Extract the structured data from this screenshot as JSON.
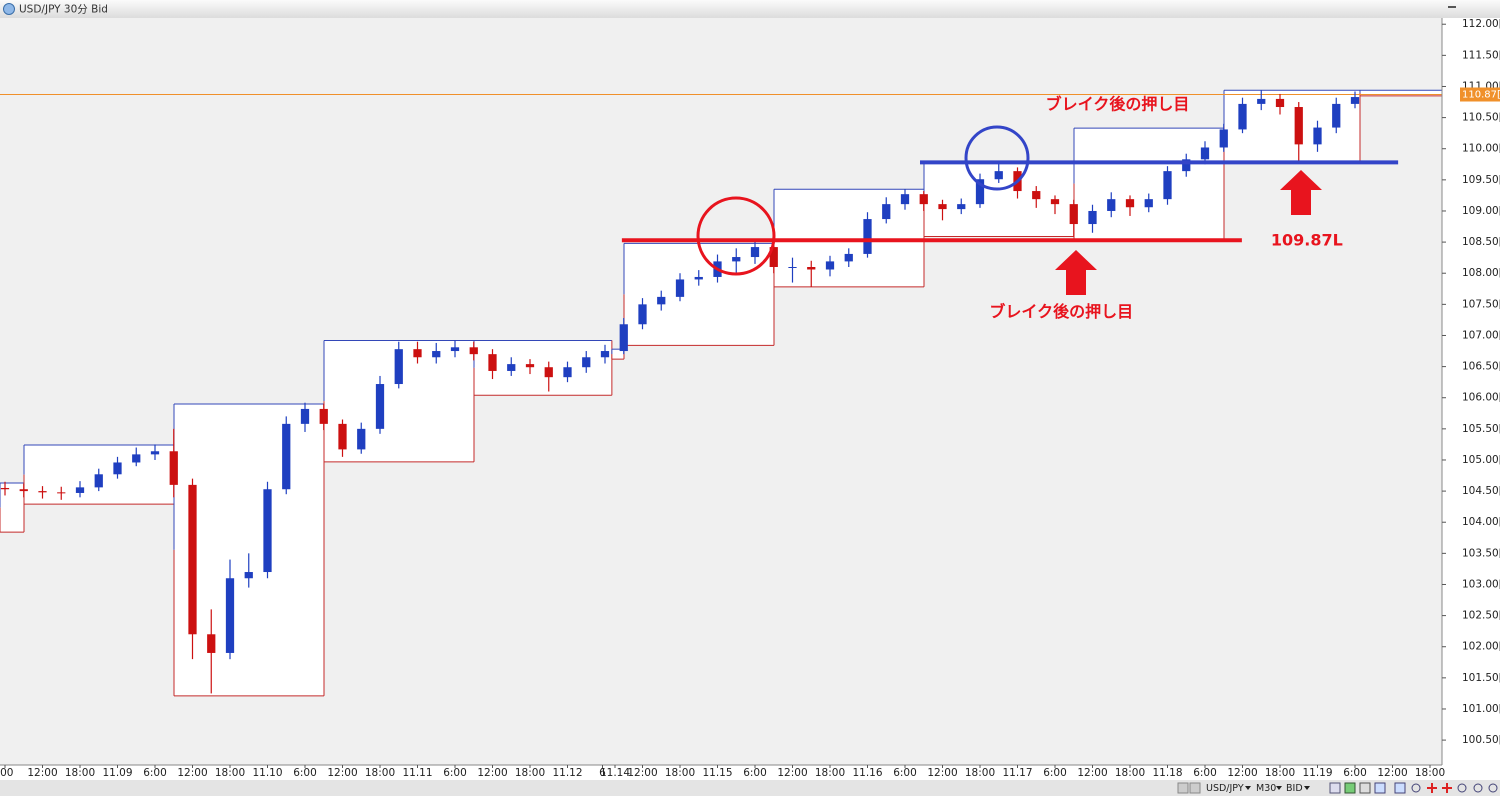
{
  "window_title": "USD/JPY 30分 Bid",
  "toolbar": [
    "USD/JPY",
    "M30",
    "BID"
  ],
  "chart_data": {
    "type": "candlestick",
    "xlim": [
      -0.8,
      229.92
    ],
    "ylim": [
      100.1,
      112.1
    ],
    "yticks": [
      {
        "value": 112.0,
        "label": "112.00[0"
      },
      {
        "value": 111.5,
        "label": "111.50[0"
      },
      {
        "value": 111.0,
        "label": "111.00[0"
      },
      {
        "value": 110.5,
        "label": "110.50[0"
      },
      {
        "value": 110.0,
        "label": "110.00[0"
      },
      {
        "value": 109.5,
        "label": "109.50[0"
      },
      {
        "value": 109.0,
        "label": "109.00[0"
      },
      {
        "value": 108.5,
        "label": "108.50[0"
      },
      {
        "value": 108.0,
        "label": "108.00[0"
      },
      {
        "value": 107.5,
        "label": "107.50[0"
      },
      {
        "value": 107.0,
        "label": "107.00[0"
      },
      {
        "value": 106.5,
        "label": "106.50[0"
      },
      {
        "value": 106.0,
        "label": "106.00[0"
      },
      {
        "value": 105.5,
        "label": "105.50[0"
      },
      {
        "value": 105.0,
        "label": "105.00[0"
      },
      {
        "value": 104.5,
        "label": "104.50[0"
      },
      {
        "value": 104.0,
        "label": "104.00[0"
      },
      {
        "value": 103.5,
        "label": "103.50[0"
      },
      {
        "value": 103.0,
        "label": "103.00[0"
      },
      {
        "value": 102.5,
        "label": "102.50[0"
      },
      {
        "value": 102.0,
        "label": "102.00[0"
      },
      {
        "value": 101.5,
        "label": "101.50[0"
      },
      {
        "value": 101.0,
        "label": "101.00[0"
      },
      {
        "value": 100.5,
        "label": "100.50[0"
      }
    ],
    "xticks": [
      {
        "value": 0,
        "label": ":00"
      },
      {
        "value": 6,
        "label": "12:00"
      },
      {
        "value": 12,
        "label": "18:00"
      },
      {
        "value": 18,
        "label": "11.09"
      },
      {
        "value": 24,
        "label": "6:00"
      },
      {
        "value": 30,
        "label": "12:00"
      },
      {
        "value": 36,
        "label": "18:00"
      },
      {
        "value": 42,
        "label": "11.10"
      },
      {
        "value": 48,
        "label": "6:00"
      },
      {
        "value": 54,
        "label": "12:00"
      },
      {
        "value": 60,
        "label": "18:00"
      },
      {
        "value": 66,
        "label": "11.11"
      },
      {
        "value": 72,
        "label": "6:00"
      },
      {
        "value": 78,
        "label": "12:00"
      },
      {
        "value": 84,
        "label": "18:00"
      },
      {
        "value": 90,
        "label": "11.12"
      },
      {
        "value": 95.6,
        "label": "6"
      },
      {
        "value": 97.6,
        "label": "11.14"
      },
      {
        "value": 102,
        "label": "12:00"
      },
      {
        "value": 108,
        "label": "18:00"
      },
      {
        "value": 114,
        "label": "11.15"
      },
      {
        "value": 120,
        "label": "6:00"
      },
      {
        "value": 126,
        "label": "12:00"
      },
      {
        "value": 132,
        "label": "18:00"
      },
      {
        "value": 138,
        "label": "11.16"
      },
      {
        "value": 144,
        "label": "6:00"
      },
      {
        "value": 150,
        "label": "12:00"
      },
      {
        "value": 156,
        "label": "18:00"
      },
      {
        "value": 162,
        "label": "11.17"
      },
      {
        "value": 168,
        "label": "6:00"
      },
      {
        "value": 174,
        "label": "12:00"
      },
      {
        "value": 180,
        "label": "18:00"
      },
      {
        "value": 186,
        "label": "11.18"
      },
      {
        "value": 192,
        "label": "6:00"
      },
      {
        "value": 198,
        "label": "12:00"
      },
      {
        "value": 204,
        "label": "18:00"
      },
      {
        "value": 210,
        "label": "11.19"
      },
      {
        "value": 216,
        "label": "6:00"
      },
      {
        "value": 222,
        "label": "12:00"
      },
      {
        "value": 228,
        "label": "18:00"
      }
    ],
    "up_color": "#1f3fc0",
    "down_color": "#cc1010",
    "x": [
      0,
      3,
      6,
      9,
      12,
      15,
      18,
      21,
      24,
      27,
      30,
      33,
      36,
      39,
      42,
      45,
      48,
      51,
      54,
      57,
      60,
      63,
      66,
      69,
      72,
      75,
      78,
      81,
      84,
      87,
      90,
      93,
      96,
      99,
      102,
      105,
      108,
      111,
      114,
      117,
      120,
      123,
      126,
      129,
      132,
      135,
      138,
      141,
      144,
      147,
      150,
      153,
      156,
      159,
      162,
      165,
      168,
      171,
      174,
      177,
      180,
      183,
      186,
      189,
      192,
      195,
      198,
      201,
      204,
      207,
      210,
      213,
      216
    ],
    "open": [
      104.55,
      104.53,
      104.5,
      104.48,
      104.47,
      104.56,
      104.77,
      104.96,
      105.09,
      105.14,
      104.6,
      102.2,
      101.9,
      103.1,
      103.2,
      104.53,
      105.58,
      105.82,
      105.58,
      105.17,
      105.5,
      106.22,
      106.78,
      106.65,
      106.75,
      106.81,
      106.7,
      106.43,
      106.54,
      106.49,
      106.33,
      106.49,
      106.65,
      106.75,
      107.18,
      107.5,
      107.62,
      107.9,
      107.94,
      108.19,
      108.26,
      108.42,
      108.1,
      108.1,
      108.06,
      108.19,
      108.31,
      108.87,
      109.11,
      109.27,
      109.11,
      109.03,
      109.11,
      109.51,
      109.64,
      109.32,
      109.19,
      109.11,
      108.79,
      109.0,
      109.19,
      109.06,
      109.19,
      109.64,
      109.83,
      110.02,
      110.31,
      110.72,
      110.8,
      110.67,
      110.07,
      110.34,
      110.72
    ],
    "high": [
      104.65,
      104.62,
      104.58,
      104.57,
      104.66,
      104.86,
      105.05,
      105.2,
      105.25,
      105.5,
      104.7,
      102.6,
      103.4,
      103.5,
      104.65,
      105.7,
      105.92,
      105.9,
      105.65,
      105.6,
      106.35,
      106.9,
      106.9,
      106.88,
      106.92,
      106.9,
      106.78,
      106.65,
      106.62,
      106.58,
      106.58,
      106.75,
      106.85,
      107.28,
      107.6,
      107.72,
      108.0,
      108.05,
      108.3,
      108.4,
      108.55,
      108.48,
      108.25,
      108.2,
      108.28,
      108.4,
      108.98,
      109.22,
      109.35,
      109.32,
      109.18,
      109.2,
      109.6,
      109.77,
      109.7,
      109.4,
      109.25,
      109.18,
      109.1,
      109.3,
      109.25,
      109.28,
      109.72,
      109.92,
      110.12,
      110.4,
      110.82,
      110.94,
      110.88,
      110.75,
      110.45,
      110.82,
      110.92
    ],
    "low": [
      104.43,
      104.4,
      104.38,
      104.36,
      104.4,
      104.5,
      104.7,
      104.9,
      105.0,
      104.4,
      101.8,
      101.25,
      101.8,
      102.95,
      103.1,
      104.45,
      105.45,
      105.48,
      105.05,
      105.1,
      105.42,
      106.15,
      106.55,
      106.55,
      106.65,
      106.6,
      106.3,
      106.35,
      106.38,
      106.1,
      106.25,
      106.4,
      106.55,
      106.7,
      107.1,
      107.4,
      107.55,
      107.8,
      107.85,
      108.0,
      108.15,
      108.0,
      107.85,
      107.78,
      107.95,
      108.1,
      108.25,
      108.8,
      109.02,
      109.0,
      108.85,
      108.95,
      109.05,
      109.45,
      109.2,
      109.05,
      108.95,
      108.59,
      108.65,
      108.9,
      108.92,
      108.98,
      109.1,
      109.55,
      109.75,
      109.95,
      110.25,
      110.62,
      110.55,
      109.8,
      109.95,
      110.25,
      110.65
    ],
    "close": [
      104.53,
      104.5,
      104.48,
      104.47,
      104.56,
      104.77,
      104.96,
      105.09,
      105.14,
      104.6,
      102.2,
      101.9,
      103.1,
      103.2,
      104.53,
      105.58,
      105.82,
      105.58,
      105.17,
      105.5,
      106.22,
      106.78,
      106.65,
      106.75,
      106.81,
      106.7,
      106.43,
      106.54,
      106.49,
      106.33,
      106.49,
      106.65,
      106.75,
      107.18,
      107.5,
      107.62,
      107.9,
      107.94,
      108.19,
      108.26,
      108.42,
      108.1,
      108.1,
      108.06,
      108.19,
      108.31,
      108.87,
      109.11,
      109.27,
      109.11,
      109.03,
      109.11,
      109.51,
      109.64,
      109.32,
      109.19,
      109.11,
      108.79,
      109.0,
      109.19,
      109.06,
      109.19,
      109.64,
      109.83,
      110.02,
      110.31,
      110.72,
      110.8,
      110.67,
      110.07,
      110.34,
      110.72,
      110.83
    ],
    "ranges": [
      {
        "start": -0.8,
        "end": 3.04,
        "high": 104.63,
        "low": 103.84
      },
      {
        "start": 3.04,
        "end": 27.04,
        "high": 105.24,
        "low": 104.29
      },
      {
        "start": 27.04,
        "end": 51.04,
        "high": 105.9,
        "low": 101.21
      },
      {
        "start": 51.04,
        "end": 75.04,
        "high": 106.92,
        "low": 104.97
      },
      {
        "start": 75.04,
        "end": 97.1,
        "high": 106.92,
        "low": 106.04
      },
      {
        "start": 97.1,
        "end": 99.04,
        "high": 106.78,
        "low": 106.62
      },
      {
        "start": 99.04,
        "end": 123.04,
        "high": 108.48,
        "low": 106.84
      },
      {
        "start": 123.04,
        "end": 147.04,
        "high": 109.35,
        "low": 107.78
      },
      {
        "start": 147.04,
        "end": 171.04,
        "high": 109.77,
        "low": 108.59
      },
      {
        "start": 171.04,
        "end": 195.04,
        "high": 110.33,
        "low": 108.55
      },
      {
        "start": 195.04,
        "end": 216.8,
        "high": 110.94,
        "low": 109.8
      },
      {
        "start": 216.8,
        "end": 232.8,
        "high": 110.94,
        "low": 110.85
      }
    ],
    "range_high_color": "#3347b8",
    "range_low_color": "#c42a2a",
    "price_line": {
      "value": 110.871,
      "label": "110.87[1",
      "color": "#f0902a"
    },
    "lines": [
      {
        "value": 108.53,
        "start": 98.7,
        "end": 197.9,
        "color": "#e8141e"
      },
      {
        "value": 109.78,
        "start": 146.4,
        "end": 222.9,
        "color": "#3345c8"
      }
    ],
    "annotations": [
      {
        "text": "ブレイク後の押し目",
        "x": 178,
        "y": 110.7
      },
      {
        "text": "ブレイク後の押し目",
        "x": 169,
        "y": 107.37
      },
      {
        "text": "109.87L",
        "x": 208.3,
        "y": 108.52
      }
    ]
  }
}
